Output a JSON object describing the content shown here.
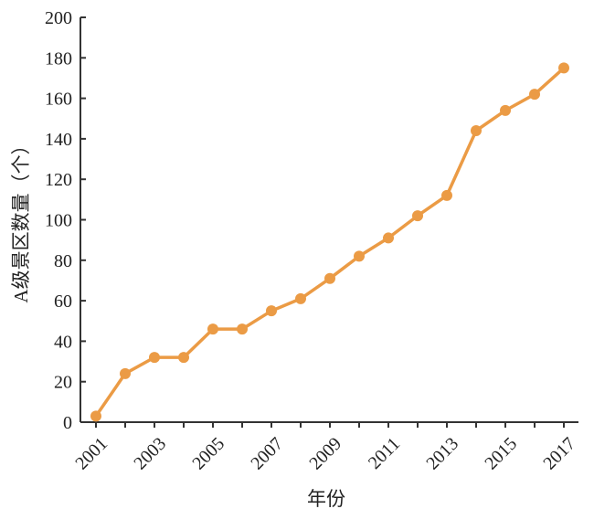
{
  "chart_data": {
    "type": "line",
    "xlabel": "年份",
    "ylabel": "A级景区数量（个）",
    "ylim": [
      0,
      200
    ],
    "yticks": [
      0,
      20,
      40,
      60,
      80,
      100,
      120,
      140,
      160,
      180,
      200
    ],
    "xlim": [
      2001,
      2017
    ],
    "xticks": [
      "2001",
      "2003",
      "2005",
      "2007",
      "2009",
      "2011",
      "2013",
      "2015",
      "2017"
    ],
    "grid": false,
    "series": [
      {
        "color": "#EB9B45",
        "points": [
          {
            "x": 2001,
            "y": 3
          },
          {
            "x": 2002,
            "y": 24
          },
          {
            "x": 2003,
            "y": 32
          },
          {
            "x": 2004,
            "y": 32
          },
          {
            "x": 2005,
            "y": 46
          },
          {
            "x": 2006,
            "y": 46
          },
          {
            "x": 2007,
            "y": 55
          },
          {
            "x": 2008,
            "y": 61
          },
          {
            "x": 2009,
            "y": 71
          },
          {
            "x": 2010,
            "y": 82
          },
          {
            "x": 2011,
            "y": 91
          },
          {
            "x": 2012,
            "y": 102
          },
          {
            "x": 2013,
            "y": 112
          },
          {
            "x": 2014,
            "y": 144
          },
          {
            "x": 2015,
            "y": 154
          },
          {
            "x": 2016,
            "y": 162
          },
          {
            "x": 2017,
            "y": 175
          }
        ]
      }
    ]
  }
}
